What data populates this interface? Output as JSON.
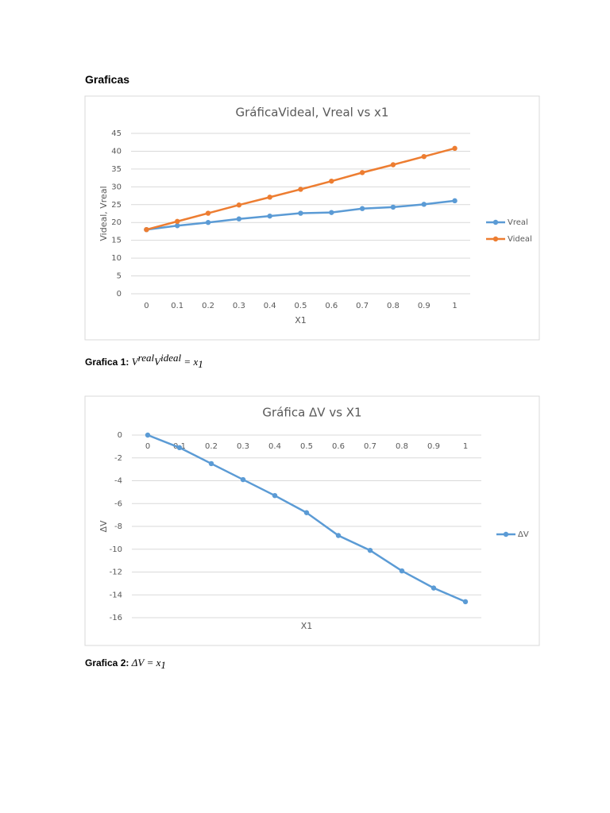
{
  "heading": "Graficas",
  "chart_data": [
    {
      "type": "line",
      "title": "GráficaVideal, Vreal vs x1",
      "x_label": "X1",
      "y_label": "Videal, Vreal",
      "categories": [
        "0",
        "0.1",
        "0.2",
        "0.3",
        "0.4",
        "0.5",
        "0.6",
        "0.7",
        "0.8",
        "0.9",
        "1"
      ],
      "series": [
        {
          "name": "Vreal",
          "color": "#5b9bd5",
          "values": [
            18,
            19.1,
            20,
            21,
            21.8,
            22.6,
            22.8,
            23.9,
            24.3,
            25.1,
            26.1
          ]
        },
        {
          "name": "Videal",
          "color": "#ed7d31",
          "values": [
            18,
            20.3,
            22.6,
            24.9,
            27.1,
            29.3,
            31.6,
            34,
            36.2,
            38.5,
            40.8
          ]
        }
      ],
      "ylim": [
        0,
        45
      ],
      "yticks": [
        0,
        5,
        10,
        15,
        20,
        25,
        30,
        35,
        40,
        45
      ],
      "grid": true,
      "legend": "right"
    },
    {
      "type": "line",
      "title": "Gráfica ΔV vs X1",
      "x_label": "X1",
      "y_label": "ΔV",
      "categories": [
        "0",
        "0.1",
        "0.2",
        "0.3",
        "0.4",
        "0.5",
        "0.6",
        "0.7",
        "0.8",
        "0.9",
        "1"
      ],
      "series": [
        {
          "name": "ΔV",
          "color": "#5b9bd5",
          "values": [
            0,
            -1.1,
            -2.5,
            -3.9,
            -5.3,
            -6.8,
            -8.8,
            -10.1,
            -11.9,
            -13.4,
            -14.6
          ]
        }
      ],
      "ylim": [
        -16,
        0
      ],
      "yticks": [
        -16,
        -14,
        -12,
        -10,
        -8,
        -6,
        -4,
        -2,
        0
      ],
      "grid": true,
      "legend": "right"
    }
  ],
  "captions": [
    {
      "label": "Grafica 1:",
      "parts": [
        "V",
        "real",
        "V",
        "ideal",
        "= x",
        "1"
      ]
    },
    {
      "label": "Grafica 2:",
      "parts": [
        "ΔV",
        "= x",
        "1"
      ]
    }
  ]
}
